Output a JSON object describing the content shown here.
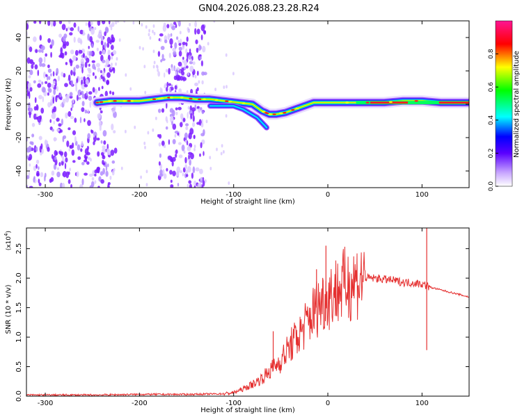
{
  "title": "GN04.2026.088.23.28.R24",
  "chart_data": [
    {
      "type": "heatmap",
      "xlabel": "Height of straight line (km)",
      "ylabel": "Frequency (Hz)",
      "xlim": [
        -320,
        150
      ],
      "ylim": [
        -50,
        50
      ],
      "xticks": [
        -300,
        -200,
        -100,
        0,
        100
      ],
      "yticks": [
        -40,
        -20,
        0,
        20,
        40
      ],
      "colorbar": {
        "label": "Normalized spectral amplitude",
        "range": [
          0,
          1
        ],
        "ticks": [
          "0.0",
          "0.2",
          "0.4",
          "0.6",
          "0.8"
        ],
        "colors": [
          "#ffffff",
          "#7a00ff",
          "#0000ff",
          "#00ffff",
          "#00ff00",
          "#ffff00",
          "#ff0000",
          "#ff1493"
        ]
      },
      "ridge": {
        "x": [
          -245,
          -230,
          -215,
          -200,
          -185,
          -170,
          -155,
          -140,
          -125,
          -110,
          -95,
          -80,
          -70,
          -62,
          -55,
          -45,
          -35,
          -25,
          -15,
          0,
          20,
          40,
          60,
          80,
          100,
          120,
          150
        ],
        "y": [
          1,
          2,
          2,
          2,
          3,
          4,
          4,
          3,
          3,
          2,
          1,
          0,
          -4,
          -6,
          -6,
          -5,
          -3,
          -1,
          1,
          1,
          1,
          1,
          1,
          2,
          2,
          1,
          1
        ]
      },
      "noise_bands": [
        [
          -320,
          -225
        ],
        [
          -180,
          -130
        ]
      ]
    },
    {
      "type": "line",
      "xlabel": "Height of straight line (km)",
      "ylabel": "SNR (10 * v/v)",
      "y_scale_label": "(x10",
      "y_scale_exp": "4",
      "xlim": [
        -320,
        150
      ],
      "ylim": [
        0,
        2.85
      ],
      "xticks": [
        -300,
        -200,
        -100,
        0,
        100
      ],
      "yticks": [
        "0.0",
        "0.5",
        "1.0",
        "1.5",
        "2.0",
        "2.5"
      ],
      "series": [
        {
          "name": "SNR",
          "color": "#e53030",
          "x": [
            -320,
            -250,
            -200,
            -150,
            -110,
            -100,
            -90,
            -80,
            -70,
            -60,
            -50,
            -40,
            -30,
            -20,
            -10,
            0,
            10,
            20,
            30,
            40,
            50,
            60,
            70,
            80,
            90,
            100,
            104,
            110,
            120,
            130,
            140,
            150
          ],
          "y": [
            0.02,
            0.02,
            0.03,
            0.03,
            0.04,
            0.06,
            0.12,
            0.2,
            0.3,
            0.45,
            0.6,
            0.85,
            1.05,
            1.3,
            1.55,
            1.7,
            1.8,
            1.9,
            1.97,
            2.0,
            2.0,
            1.98,
            1.96,
            1.93,
            1.92,
            1.9,
            1.88,
            1.84,
            1.8,
            1.76,
            1.72,
            1.68
          ]
        }
      ],
      "spikes": [
        {
          "x": -58,
          "y": 1.1
        },
        {
          "x": -12,
          "y": 2.15
        },
        {
          "x": -2,
          "y": 2.55
        },
        {
          "x": 105,
          "y": 2.85
        },
        {
          "x": 105,
          "y": 0.78
        }
      ]
    }
  ]
}
